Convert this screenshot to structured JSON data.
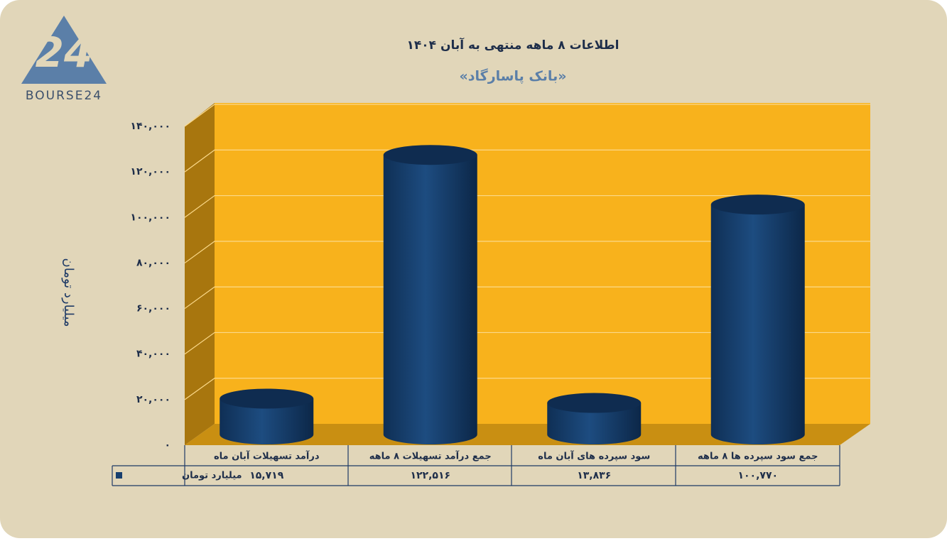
{
  "logo": "BOURSE24",
  "chart_data": {
    "type": "bar",
    "title": "اطلاعات ۸ ماهه منتهی به آبان ۱۴۰۴",
    "subtitle": "«بانک پاسارگاد»",
    "y_label": "میلیارد تومان",
    "categories": [
      "درآمد تسهیلات آبان  ماه",
      "جمع درآمد تسهیلات ۸  ماهه",
      "سود سپرده های آبان  ماه",
      "جمع سود سپرده ها  ۸  ماهه"
    ],
    "series": [
      {
        "name": "میلیارد تومان",
        "color": "#173f6e",
        "values": [
          15719,
          122516,
          13836,
          100770
        ],
        "value_labels": [
          "۱۵,۷۱۹",
          "۱۲۲,۵۱۶",
          "۱۳,۸۳۶",
          "۱۰۰,۷۷۰"
        ]
      }
    ],
    "ylim": [
      0,
      140000
    ],
    "yticks": [
      {
        "value": 0,
        "label": "۰"
      },
      {
        "value": 20000,
        "label": "۲۰,۰۰۰"
      },
      {
        "value": 40000,
        "label": "۴۰,۰۰۰"
      },
      {
        "value": 60000,
        "label": "۶۰,۰۰۰"
      },
      {
        "value": 80000,
        "label": "۸۰,۰۰۰"
      },
      {
        "value": 100000,
        "label": "۱۰۰,۰۰۰"
      },
      {
        "value": 120000,
        "label": "۱۲۰,۰۰۰"
      },
      {
        "value": 140000,
        "label": "۱۴۰,۰۰۰"
      }
    ],
    "grid": true
  }
}
